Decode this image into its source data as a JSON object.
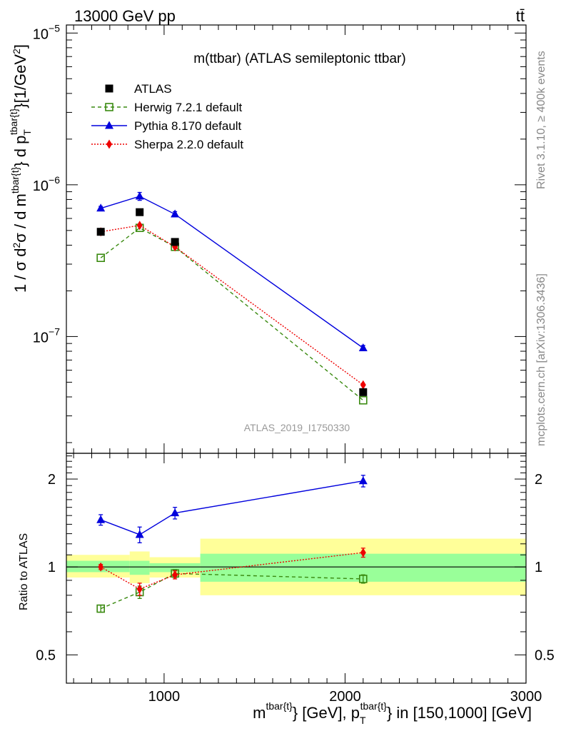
{
  "header": {
    "left_text": "13000 GeV pp",
    "right_text": "tt̄"
  },
  "side_text": {
    "rivet": "Rivet 3.1.10, ≥ 400k events",
    "mcplots": "mcplots.cern.ch [arXiv:1306.3436]"
  },
  "chart_data": {
    "type": "line",
    "title": "m(ttbar) (ATLAS semileptonic ttbar)",
    "watermark": "ATLAS_2019_I1750330",
    "xlabel": "m^{tbar{t}} [GeV], p_T^{tbar{t}} in [150,1000] [GeV]",
    "xlabel_parts": {
      "m": "m",
      "sup1": "tbar{t}",
      "mid": "} [GeV], p",
      "sub": "T",
      "sup2": "tbar{t}",
      "end": "} in [150,1000] [GeV]"
    },
    "ylabel": "1 / σ d²σ / d m^{tbar{t}} d p_T^{tbar{t}} [1/GeV²]",
    "ylabel_parts": {
      "a": "1 / σ d",
      "sup2": "2",
      "b": "σ / d m",
      "sup_t": "tbar{t}",
      "c": "} d p",
      "sub_t": "T",
      "sup_t2": "tbar{t}",
      "d": "}[1/GeV",
      "sup_gev": "2",
      "e": "]"
    },
    "ratio_ylabel": "Ratio to ATLAS",
    "xlim": [
      460,
      3000
    ],
    "ylim_main": [
      1.7e-08,
      1.13e-05
    ],
    "ylim_ratio": [
      0.4,
      2.45
    ],
    "x_ticks": [
      1000,
      2000,
      3000
    ],
    "x_tick_labels": [
      "1000",
      "2000",
      "3000"
    ],
    "y_ticks_main": [
      1e-07,
      1e-06,
      1e-05
    ],
    "y_tick_labels_main": {
      "base": "10",
      "exps": [
        "−7",
        "−6",
        "−5"
      ]
    },
    "y_ticks_ratio": [
      0.5,
      1,
      2
    ],
    "y_tick_labels_ratio": [
      "0.5",
      "1",
      "2"
    ],
    "bin_edges": [
      460,
      810,
      920,
      1200,
      3000
    ],
    "x": [
      650,
      865,
      1060,
      2100
    ],
    "series": [
      {
        "name": "ATLAS",
        "color": "#000000",
        "marker": "square-filled",
        "line": "none",
        "values": [
          4.9e-07,
          6.6e-07,
          4.2e-07,
          4.3e-08
        ],
        "ratio": [
          1,
          1,
          1,
          1
        ]
      },
      {
        "name": "Herwig 7.2.1 default",
        "color": "#3a8a10",
        "marker": "square-open",
        "line": "dashed",
        "values": [
          3.3e-07,
          5.2e-07,
          3.9e-07,
          3.8e-08
        ],
        "ratio": [
          0.72,
          0.82,
          0.95,
          0.91
        ],
        "ratio_err": [
          0.02,
          0.04,
          0.03,
          0.03
        ]
      },
      {
        "name": "Pythia 8.170 default",
        "color": "#0000dd",
        "marker": "triangle",
        "line": "solid",
        "values": [
          7e-07,
          8.4e-07,
          6.4e-07,
          8.4e-08
        ],
        "err_rel": [
          0.03,
          0.06,
          0.04,
          0.04
        ],
        "ratio": [
          1.45,
          1.29,
          1.53,
          1.97
        ],
        "ratio_err": [
          0.06,
          0.08,
          0.07,
          0.09
        ]
      },
      {
        "name": "Sherpa 2.2.0 default",
        "color": "#ee0000",
        "marker": "diamond",
        "line": "dotted",
        "values": [
          4.9e-07,
          5.4e-07,
          3.9e-07,
          4.8e-08
        ],
        "ratio": [
          1.0,
          0.84,
          0.94,
          1.12
        ],
        "ratio_err": [
          0.02,
          0.04,
          0.03,
          0.04
        ]
      }
    ],
    "uncertainty_bands": {
      "inner_color": "#99ff99",
      "outer_color": "#ffff99",
      "inner": [
        [
          0.96,
          1.05
        ],
        [
          0.94,
          1.05
        ],
        [
          0.96,
          1.03
        ],
        [
          0.89,
          1.11
        ]
      ],
      "outer": [
        [
          0.92,
          1.1
        ],
        [
          0.88,
          1.13
        ],
        [
          0.92,
          1.08
        ],
        [
          0.8,
          1.25
        ]
      ]
    }
  }
}
